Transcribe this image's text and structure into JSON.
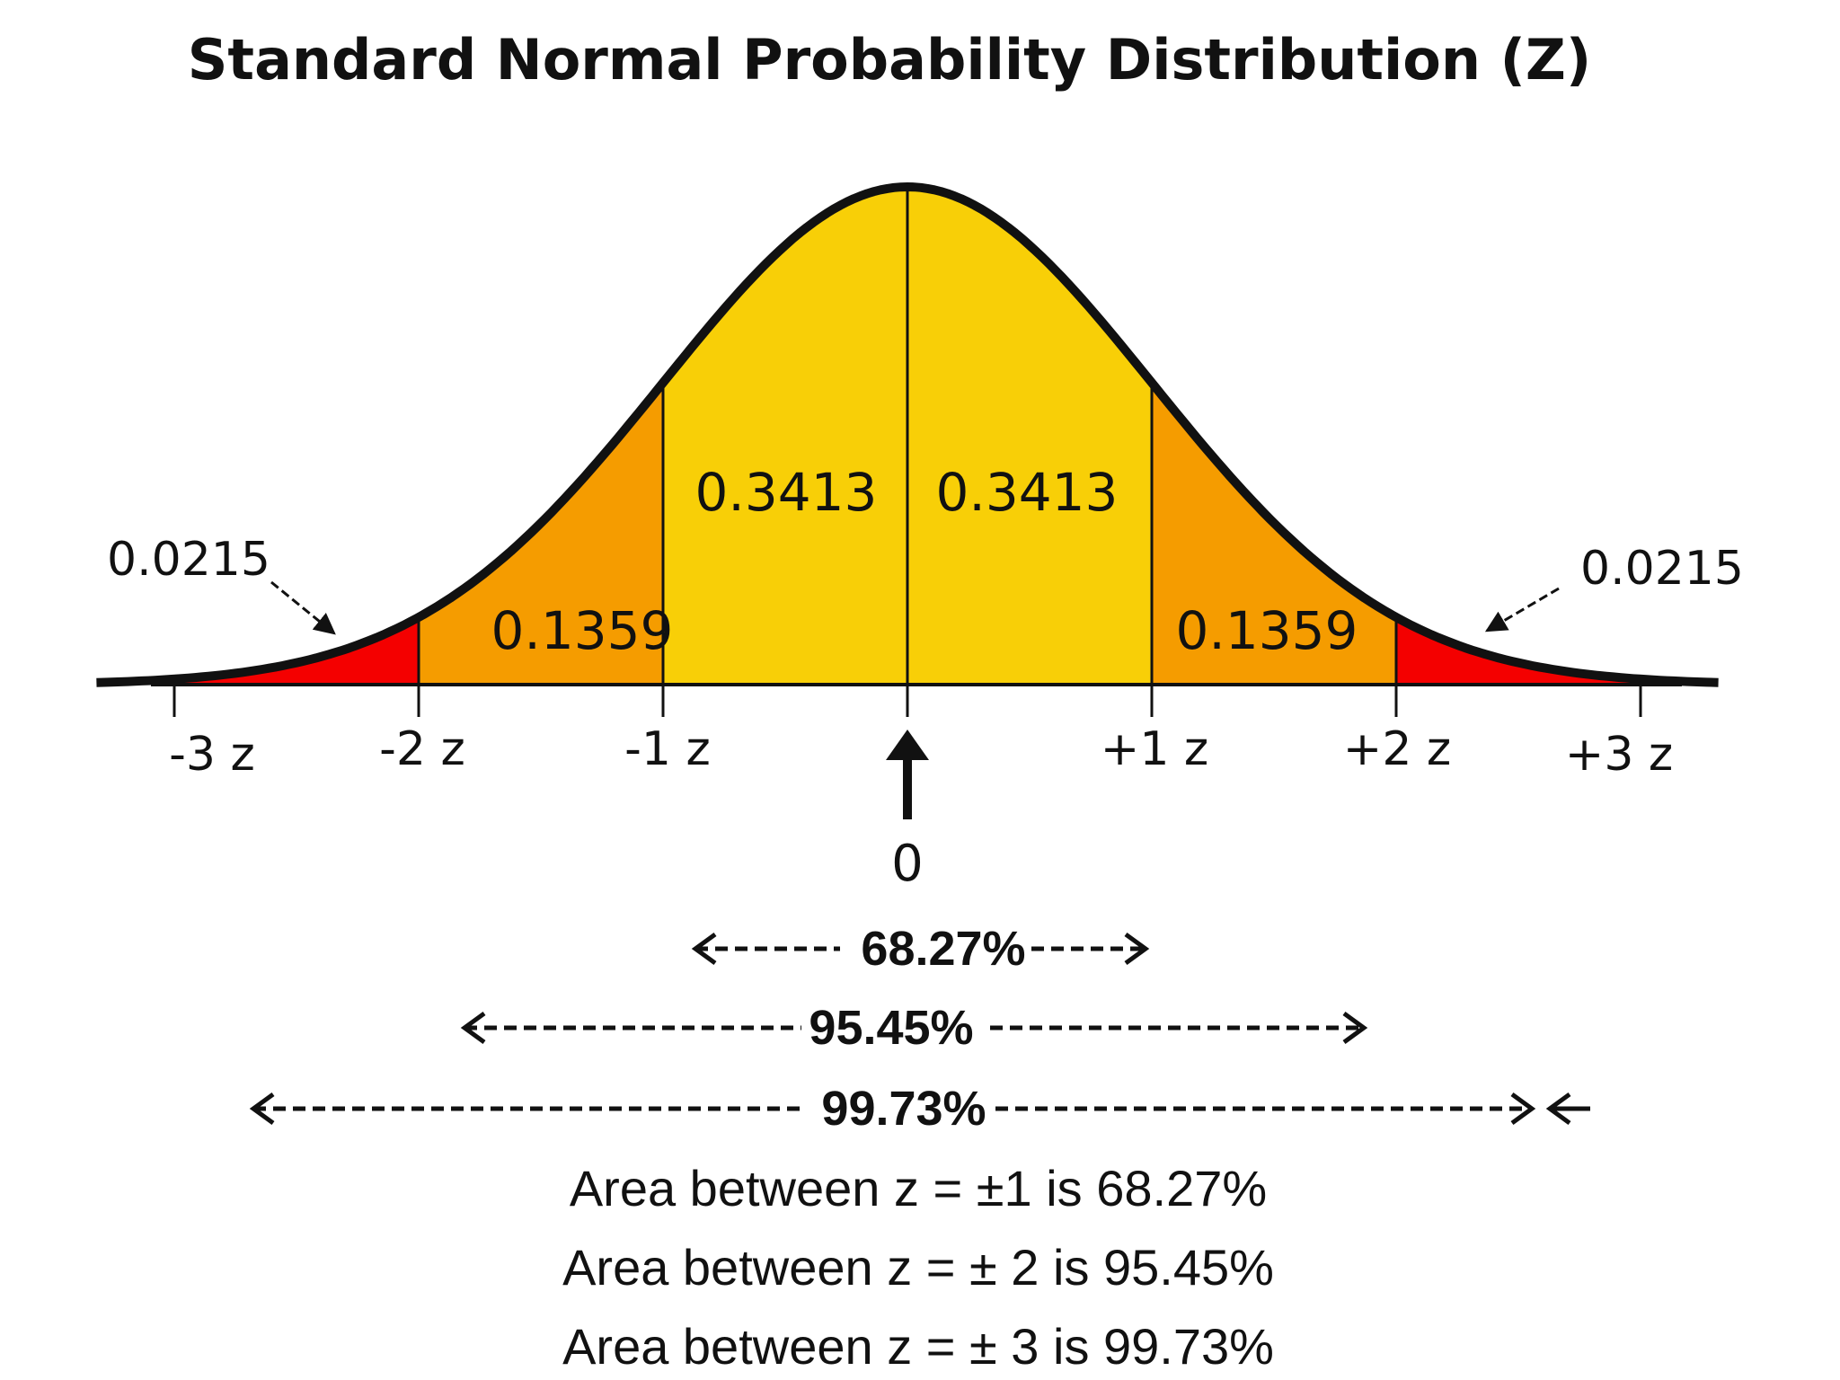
{
  "chart_data": {
    "type": "area",
    "title": "Standard Normal Probability Distribution (Z)",
    "x_ticks": [
      "-3 z",
      "-2 z",
      "-1 z",
      "+1 z",
      "+2 z",
      "+3 z"
    ],
    "x_tick_values": [
      -3,
      -2,
      -1,
      1,
      2,
      3
    ],
    "center_label": "0",
    "xlim": [
      -3.3,
      3.3
    ],
    "regions": [
      {
        "from": -3,
        "to": -2,
        "value": "0.0215",
        "color": "#f40000"
      },
      {
        "from": -2,
        "to": -1,
        "value": "0.1359",
        "color": "#f59c00"
      },
      {
        "from": -1,
        "to": 0,
        "value": "0.3413",
        "color": "#f8cf07"
      },
      {
        "from": 0,
        "to": 1,
        "value": "0.3413",
        "color": "#f8cf07"
      },
      {
        "from": 1,
        "to": 2,
        "value": "0.1359",
        "color": "#f59c00"
      },
      {
        "from": 2,
        "to": 3,
        "value": "0.0215",
        "color": "#f40000"
      }
    ],
    "ranges": [
      {
        "label": "68.27%",
        "from": -1,
        "to": 1
      },
      {
        "label": "95.45%",
        "from": -2,
        "to": 2
      },
      {
        "label": "99.73%",
        "from": -3,
        "to": 3
      }
    ],
    "notes": [
      "Area between z = ±1 is 68.27%",
      "Area between z = ± 2 is 95.45%",
      "Area between z = ± 3 is 99.73%"
    ]
  }
}
